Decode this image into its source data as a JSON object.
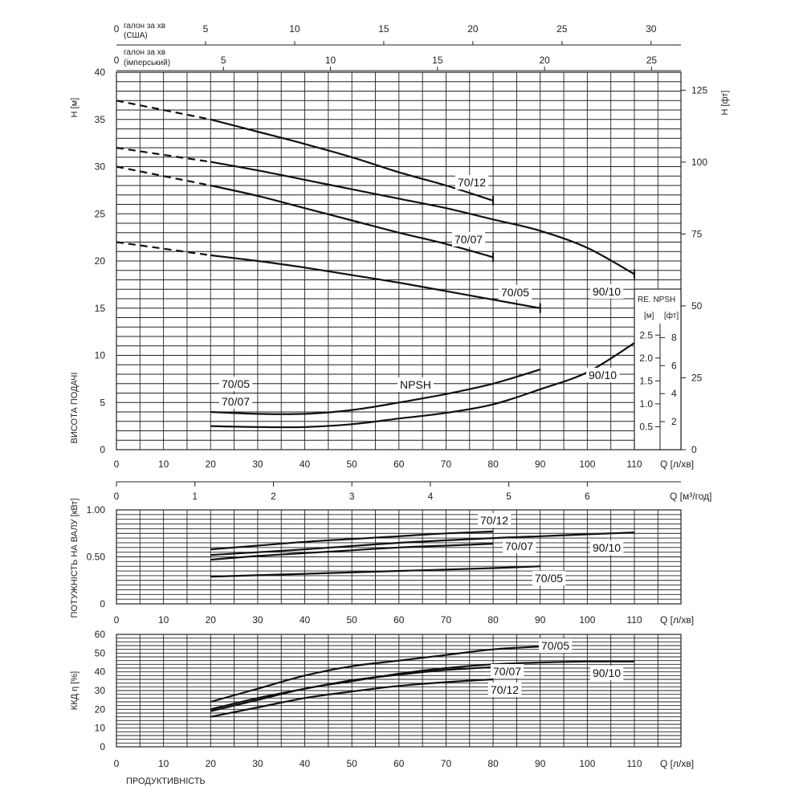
{
  "chart_data": [
    {
      "id": "head",
      "type": "line",
      "xlim": [
        0,
        120
      ],
      "x_ticks": [
        0,
        10,
        20,
        30,
        40,
        50,
        60,
        70,
        80,
        90,
        100,
        110
      ],
      "x_unit_label": "Q [л/хв]",
      "ylim": [
        0,
        40
      ],
      "y_ticks": [
        0,
        5,
        10,
        15,
        20,
        25,
        30,
        35,
        40
      ],
      "ylabel": "Н [м]",
      "side_label": "ВИСОТА ПОДАЧІ",
      "right_axis": {
        "label": "Н [фт]",
        "ticks": [
          0,
          25,
          50,
          75,
          100,
          125
        ]
      },
      "top_axes": [
        {
          "label_lines": [
            "галон за хв",
            "(США)"
          ],
          "zero": "0",
          "ticks": [
            5,
            10,
            15,
            20,
            25,
            30
          ]
        },
        {
          "label_lines": [
            "галон за хв",
            "(імперський)"
          ],
          "zero": "0",
          "ticks": [
            5,
            10,
            15,
            20,
            25
          ]
        }
      ],
      "series": [
        {
          "name": "70/12",
          "dashed_x": [
            0,
            20
          ],
          "x": [
            0,
            20,
            30,
            40,
            50,
            60,
            70,
            80
          ],
          "y": [
            37,
            35,
            33.7,
            32.4,
            31,
            29.4,
            28,
            26.4
          ]
        },
        {
          "name": "90/10",
          "dashed_x": [
            0,
            20
          ],
          "x": [
            0,
            20,
            30,
            40,
            50,
            60,
            70,
            80,
            90,
            100,
            110
          ],
          "y": [
            32,
            30.5,
            29.6,
            28.6,
            27.6,
            26.6,
            25.6,
            24.4,
            23.2,
            21.4,
            18.6
          ]
        },
        {
          "name": "70/07",
          "dashed_x": [
            0,
            20
          ],
          "x": [
            0,
            20,
            30,
            40,
            50,
            60,
            70,
            80
          ],
          "y": [
            30,
            28,
            26.9,
            25.6,
            24.3,
            23.0,
            21.8,
            20.4
          ]
        },
        {
          "name": "70/05",
          "dashed_x": [
            0,
            20
          ],
          "x": [
            0,
            20,
            30,
            40,
            50,
            60,
            70,
            80,
            90
          ],
          "y": [
            22,
            20.6,
            20.0,
            19.3,
            18.5,
            17.7,
            16.8,
            15.9,
            15.0
          ]
        }
      ],
      "npsh": {
        "label": "NPSH",
        "box": {
          "title": "RE. NPSH",
          "left_unit": "[м]",
          "right_unit": "[фт]",
          "left_ticks": [
            "0.5",
            "1.0",
            "1.5",
            "2.0",
            "2.5"
          ],
          "right_ticks": [
            "2",
            "4",
            "6",
            "8"
          ]
        },
        "series": [
          {
            "name": "70/05 · 70/07",
            "x": [
              20,
              30,
              40,
              50,
              60,
              70,
              80,
              90
            ],
            "y": [
              4.0,
              3.8,
              3.8,
              4.2,
              5.0,
              5.9,
              7.0,
              8.5
            ]
          },
          {
            "name": "90/10",
            "x": [
              20,
              30,
              40,
              50,
              60,
              70,
              80,
              90,
              100,
              110
            ],
            "y": [
              2.5,
              2.4,
              2.4,
              2.7,
              3.3,
              3.9,
              4.8,
              6.4,
              8.2,
              11.3
            ]
          }
        ]
      },
      "labels": {
        "h_70_12": "70/12",
        "h_90_10": "90/10",
        "h_70_07": "70/07",
        "h_70_05": "70/05",
        "npsh_70_05": "70/05",
        "npsh_70_07": "70/07",
        "npsh_90_10": "90/10"
      }
    },
    {
      "id": "m3h_axis",
      "type": "axis",
      "label": "Q [м³/год]",
      "ticks": [
        0,
        1,
        2,
        3,
        4,
        5,
        6
      ]
    },
    {
      "id": "power",
      "type": "line",
      "xlim": [
        0,
        120
      ],
      "x_ticks": [
        0,
        10,
        20,
        30,
        40,
        50,
        60,
        70,
        80,
        90,
        100,
        110
      ],
      "x_unit_label": "Q [л/хв]",
      "ylim": [
        0,
        1.0
      ],
      "y_ticks": [
        "0",
        "0.50",
        "1.00"
      ],
      "ylabel": "ПОТУЖНІСТЬ НА ВАЛУ [кВт]",
      "series": [
        {
          "name": "70/12",
          "x": [
            20,
            30,
            40,
            50,
            60,
            70,
            80
          ],
          "y": [
            0.58,
            0.62,
            0.66,
            0.69,
            0.72,
            0.75,
            0.77
          ]
        },
        {
          "name": "90/10",
          "x": [
            20,
            40,
            60,
            80,
            90,
            100,
            110
          ],
          "y": [
            0.52,
            0.58,
            0.65,
            0.7,
            0.72,
            0.74,
            0.76
          ]
        },
        {
          "name": "70/07",
          "x": [
            20,
            30,
            40,
            50,
            60,
            70,
            80
          ],
          "y": [
            0.47,
            0.51,
            0.54,
            0.57,
            0.6,
            0.62,
            0.64
          ]
        },
        {
          "name": "70/05",
          "x": [
            20,
            40,
            60,
            80,
            90
          ],
          "y": [
            0.29,
            0.32,
            0.35,
            0.38,
            0.4
          ]
        }
      ],
      "labels": {
        "p_70_12": "70/12",
        "p_70_07": "70/07",
        "p_90_10": "90/10",
        "p_70_05": "70/05"
      }
    },
    {
      "id": "efficiency",
      "type": "line",
      "xlim": [
        0,
        120
      ],
      "x_ticks": [
        0,
        10,
        20,
        30,
        40,
        50,
        60,
        70,
        80,
        90,
        100,
        110
      ],
      "x_unit_label": "Q [л/хв]",
      "ylim": [
        0,
        60
      ],
      "y_ticks": [
        0,
        10,
        20,
        30,
        40,
        50,
        60
      ],
      "ylabel": "ККД  η  [%]",
      "xlabel": "ПРОДУКТИВНІСТЬ",
      "series": [
        {
          "name": "70/05",
          "x": [
            20,
            30,
            40,
            50,
            60,
            70,
            80,
            90
          ],
          "y": [
            24,
            31,
            38,
            43,
            46,
            49,
            52,
            53.5
          ]
        },
        {
          "name": "90/10",
          "x": [
            20,
            30,
            40,
            50,
            60,
            70,
            80,
            90,
            100,
            110
          ],
          "y": [
            19,
            25,
            31,
            35,
            39,
            42,
            44,
            45,
            45.5,
            45.5
          ]
        },
        {
          "name": "70/07",
          "x": [
            20,
            30,
            40,
            50,
            60,
            70,
            80
          ],
          "y": [
            20,
            26,
            31,
            35.5,
            38.5,
            41,
            42.5
          ]
        },
        {
          "name": "70/12",
          "x": [
            20,
            30,
            40,
            50,
            60,
            70,
            80
          ],
          "y": [
            16,
            21,
            26,
            29.5,
            32.5,
            34.5,
            36
          ]
        }
      ],
      "labels": {
        "e_70_05": "70/05",
        "e_70_07": "70/07",
        "e_90_10": "90/10",
        "e_70_12": "70/12"
      }
    }
  ]
}
